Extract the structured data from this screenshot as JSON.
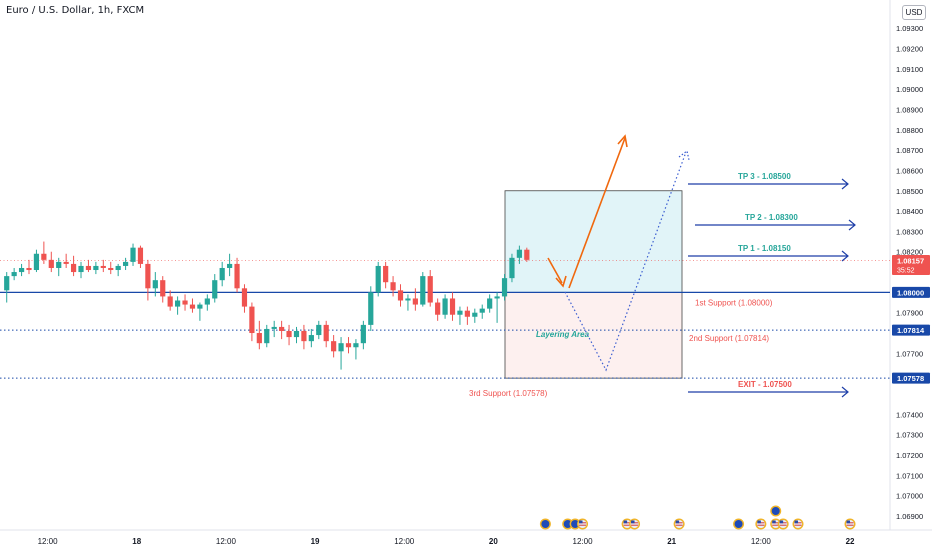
{
  "header": {
    "title": "Euro / U.S. Dollar, 1h, FXCM",
    "currency": "USD"
  },
  "colors": {
    "bull": "#26a69a",
    "bear": "#ef5350",
    "support_line": "#1848a8",
    "tp_arrow": "#1e3fa8",
    "support_label": "#ef5350",
    "tp_label": "#26a69a",
    "orange_arrow": "#f0680e",
    "zone_top": "#e1f4f8",
    "zone_bottom": "#fdf0ef"
  },
  "price_axis": {
    "min": 1.0688,
    "max": 1.0935,
    "ticks": [
      "1.09300",
      "1.09200",
      "1.09100",
      "1.09000",
      "1.08900",
      "1.08800",
      "1.08700",
      "1.08600",
      "1.08500",
      "1.08400",
      "1.08300",
      "1.08200",
      "1.07900",
      "1.07700",
      "1.07400",
      "1.07300",
      "1.07200",
      "1.07100",
      "1.07000",
      "1.06900"
    ],
    "badges": [
      {
        "label": "1.08157",
        "sub": "35:52",
        "price": 1.08157,
        "style": "bear"
      },
      {
        "label": "1.08000",
        "price": 1.08,
        "style": "blue"
      },
      {
        "label": "1.07814",
        "price": 1.07814,
        "style": "blue"
      },
      {
        "label": "1.07578",
        "price": 1.07578,
        "style": "blue"
      }
    ]
  },
  "time_axis": {
    "labels": [
      {
        "text": "12:00",
        "bar": 6,
        "bold": false
      },
      {
        "text": "18",
        "bar": 18,
        "bold": true
      },
      {
        "text": "12:00",
        "bar": 30,
        "bold": false
      },
      {
        "text": "19",
        "bar": 42,
        "bold": true
      },
      {
        "text": "12:00",
        "bar": 54,
        "bold": false
      },
      {
        "text": "20",
        "bar": 66,
        "bold": true
      },
      {
        "text": "12:00",
        "bar": 78,
        "bold": false
      },
      {
        "text": "21",
        "bar": 90,
        "bold": true
      },
      {
        "text": "12:00",
        "bar": 102,
        "bold": false
      },
      {
        "text": "22",
        "bar": 114,
        "bold": true
      }
    ],
    "events": [
      {
        "bar": 73,
        "kind": "eu"
      },
      {
        "bar": 76,
        "kind": "eu"
      },
      {
        "bar": 77,
        "kind": "eu"
      },
      {
        "bar": 78,
        "kind": "us"
      },
      {
        "bar": 84,
        "kind": "us"
      },
      {
        "bar": 85,
        "kind": "us"
      },
      {
        "bar": 91,
        "kind": "us"
      },
      {
        "bar": 99,
        "kind": "eu"
      },
      {
        "bar": 102,
        "kind": "us"
      },
      {
        "bar": 104,
        "kind": "us"
      },
      {
        "bar": 105,
        "kind": "us"
      },
      {
        "bar": 107,
        "kind": "us"
      },
      {
        "bar": 114,
        "kind": "us"
      },
      {
        "bar": 104,
        "kind": "eu",
        "stack": 1
      }
    ]
  },
  "chart_data": {
    "type": "candlestick",
    "instrument": "Euro / U.S. Dollar",
    "timeframe": "1h",
    "broker": "FXCM",
    "candles": [
      [
        1.0801,
        1.081,
        1.0795,
        1.0808
      ],
      [
        1.0808,
        1.0812,
        1.0806,
        1.081
      ],
      [
        1.081,
        1.0814,
        1.0808,
        1.0812
      ],
      [
        1.0812,
        1.0816,
        1.0809,
        1.0811
      ],
      [
        1.0811,
        1.0821,
        1.081,
        1.0819
      ],
      [
        1.0819,
        1.0825,
        1.0814,
        1.0816
      ],
      [
        1.0816,
        1.082,
        1.081,
        1.0812
      ],
      [
        1.0812,
        1.0817,
        1.0808,
        1.0815
      ],
      [
        1.0815,
        1.0819,
        1.0812,
        1.0814
      ],
      [
        1.0814,
        1.0818,
        1.0808,
        1.081
      ],
      [
        1.081,
        1.0815,
        1.0807,
        1.0813
      ],
      [
        1.0813,
        1.0816,
        1.081,
        1.0811
      ],
      [
        1.0811,
        1.0815,
        1.0809,
        1.0813
      ],
      [
        1.0813,
        1.0816,
        1.081,
        1.0812
      ],
      [
        1.0812,
        1.0815,
        1.0809,
        1.0811
      ],
      [
        1.0811,
        1.0814,
        1.0808,
        1.0813
      ],
      [
        1.0813,
        1.0817,
        1.0811,
        1.0815
      ],
      [
        1.0815,
        1.0824,
        1.0813,
        1.0822
      ],
      [
        1.0822,
        1.0823,
        1.0812,
        1.0814
      ],
      [
        1.0814,
        1.0816,
        1.0796,
        1.0802
      ],
      [
        1.0802,
        1.081,
        1.0798,
        1.0806
      ],
      [
        1.0806,
        1.0808,
        1.0795,
        1.0798
      ],
      [
        1.0798,
        1.0801,
        1.0791,
        1.0793
      ],
      [
        1.0793,
        1.0798,
        1.0789,
        1.0796
      ],
      [
        1.0796,
        1.0799,
        1.0791,
        1.0794
      ],
      [
        1.0794,
        1.0797,
        1.079,
        1.0792
      ],
      [
        1.0792,
        1.0795,
        1.0786,
        1.0794
      ],
      [
        1.0794,
        1.0799,
        1.0791,
        1.0797
      ],
      [
        1.0797,
        1.0809,
        1.0795,
        1.0806
      ],
      [
        1.0806,
        1.0815,
        1.0803,
        1.0812
      ],
      [
        1.0812,
        1.0819,
        1.0808,
        1.0814
      ],
      [
        1.0814,
        1.0817,
        1.08,
        1.0802
      ],
      [
        1.0802,
        1.0804,
        1.079,
        1.0793
      ],
      [
        1.0793,
        1.0795,
        1.0776,
        1.078
      ],
      [
        1.078,
        1.0786,
        1.0772,
        1.0775
      ],
      [
        1.0775,
        1.0784,
        1.0773,
        1.0782
      ],
      [
        1.0782,
        1.0786,
        1.0778,
        1.0783
      ],
      [
        1.0783,
        1.0786,
        1.0777,
        1.0781
      ],
      [
        1.0781,
        1.0784,
        1.0774,
        1.0778
      ],
      [
        1.0778,
        1.0783,
        1.0775,
        1.0781
      ],
      [
        1.0781,
        1.0784,
        1.0772,
        1.0776
      ],
      [
        1.0776,
        1.0782,
        1.0773,
        1.0779
      ],
      [
        1.0779,
        1.0786,
        1.0777,
        1.0784
      ],
      [
        1.0784,
        1.0786,
        1.0773,
        1.0776
      ],
      [
        1.0776,
        1.0779,
        1.0768,
        1.0771
      ],
      [
        1.0771,
        1.0778,
        1.0762,
        1.0775
      ],
      [
        1.0775,
        1.0778,
        1.077,
        1.0773
      ],
      [
        1.0773,
        1.0777,
        1.0767,
        1.0775
      ],
      [
        1.0775,
        1.0786,
        1.0772,
        1.0784
      ],
      [
        1.0784,
        1.0803,
        1.0781,
        1.08
      ],
      [
        1.08,
        1.0815,
        1.0798,
        1.0813
      ],
      [
        1.0813,
        1.0815,
        1.0802,
        1.0805
      ],
      [
        1.0805,
        1.0808,
        1.0798,
        1.0801
      ],
      [
        1.0801,
        1.0804,
        1.0793,
        1.0796
      ],
      [
        1.0796,
        1.0799,
        1.0791,
        1.0797
      ],
      [
        1.0797,
        1.0802,
        1.0791,
        1.0794
      ],
      [
        1.0794,
        1.081,
        1.0793,
        1.0808
      ],
      [
        1.0808,
        1.0811,
        1.0793,
        1.0795
      ],
      [
        1.0795,
        1.0797,
        1.0786,
        1.0789
      ],
      [
        1.0789,
        1.0799,
        1.0787,
        1.0797
      ],
      [
        1.0797,
        1.08,
        1.0786,
        1.0789
      ],
      [
        1.0789,
        1.0793,
        1.0784,
        1.0791
      ],
      [
        1.0791,
        1.0793,
        1.0784,
        1.0788
      ],
      [
        1.0788,
        1.0792,
        1.0785,
        1.079
      ],
      [
        1.079,
        1.0794,
        1.0787,
        1.0792
      ],
      [
        1.0792,
        1.0799,
        1.079,
        1.0797
      ],
      [
        1.0797,
        1.08,
        1.0785,
        1.0798
      ],
      [
        1.0798,
        1.0809,
        1.0796,
        1.0807
      ],
      [
        1.0807,
        1.0819,
        1.0805,
        1.0817
      ],
      [
        1.0817,
        1.0823,
        1.0814,
        1.0821
      ],
      [
        1.0821,
        1.0822,
        1.0815,
        1.0816
      ]
    ],
    "levels": [
      {
        "label": "1st Support (1.08000)",
        "price": 1.08,
        "style": "solid"
      },
      {
        "label": "2nd Support (1.07814)",
        "price": 1.07814,
        "style": "dotted"
      },
      {
        "label": "3rd Support (1.07578)",
        "price": 1.07578,
        "style": "dotted"
      }
    ],
    "targets": [
      {
        "label": "TP 3 - 1.08500",
        "price": 1.085
      },
      {
        "label": "TP 2 - 1.08300",
        "price": 1.083
      },
      {
        "label": "TP 1 - 1.08150",
        "price": 1.0815
      },
      {
        "label": "EXIT - 1.07500",
        "price": 1.075
      }
    ],
    "layering_area": {
      "label": "Layering Area",
      "price_top": 1.085,
      "price_mid": 1.08,
      "price_bottom": 1.07578
    }
  }
}
